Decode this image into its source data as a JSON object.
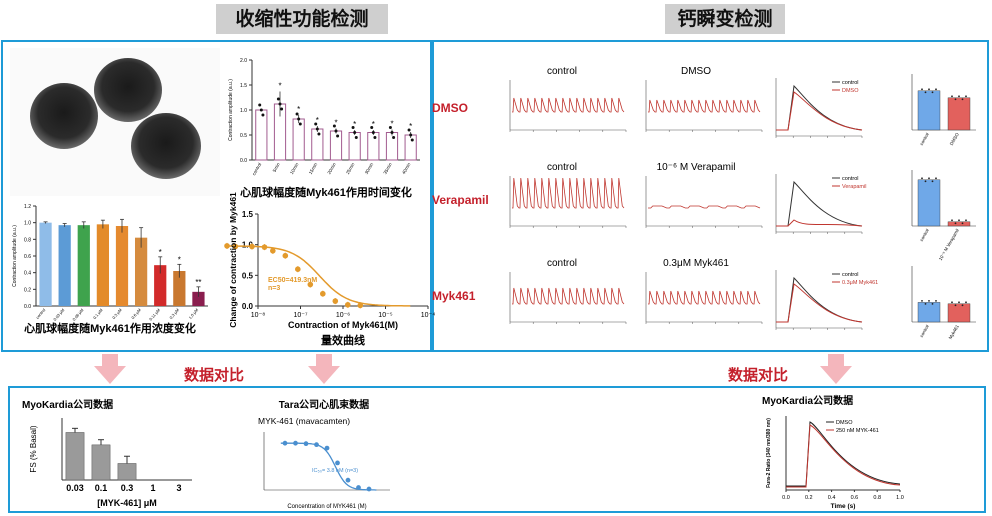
{
  "headers": {
    "left": "收缩性功能检测",
    "right": "钙瞬变检测"
  },
  "compare_labels": [
    "数据对比",
    "数据对比"
  ],
  "row_labels": [
    "DMSO",
    "Verapamil",
    "Myk461"
  ],
  "group_colors": {
    "dmso": "#e2615d",
    "drug": "#6fa8e8",
    "red_trace": "#c0362f",
    "dark_trace": "#333333",
    "accent": "#1e9bd7",
    "arrow": "#f4b6bc"
  },
  "trace_titles": [
    [
      "control",
      "DMSO"
    ],
    [
      "control",
      "10⁻⁶ M Verapamil"
    ],
    [
      "control",
      "0.3μM Myk461"
    ]
  ],
  "overlay_legends": [
    [
      "control",
      "DMSO"
    ],
    [
      "control",
      "Verapamil"
    ],
    [
      "control",
      "0.3μM Myk461"
    ]
  ],
  "chart_data": [
    {
      "id": "conc_bar",
      "type": "bar",
      "caption": "心肌球幅度随Myk461作用浓度变化",
      "ylabel": "Contraction amplitude (a.u.)",
      "categories": [
        "control",
        "0.03 μM",
        "0.06 μM",
        "0.1 μM",
        "0.3 μM",
        "0.6 μM",
        "0.11 μM",
        "0.3 μM",
        "1.0 μM"
      ],
      "values": [
        1.0,
        0.97,
        0.97,
        0.98,
        0.96,
        0.82,
        0.49,
        0.42,
        0.17
      ],
      "errors": [
        0.01,
        0.02,
        0.04,
        0.05,
        0.08,
        0.12,
        0.1,
        0.08,
        0.06
      ],
      "sig": [
        "",
        "",
        "",
        "",
        "",
        "",
        "*",
        "*",
        "**"
      ],
      "colors": [
        "#8fbce8",
        "#5c9bd6",
        "#3fa34d",
        "#e38b2a",
        "#e58a2f",
        "#d58b3e",
        "#d22a2a",
        "#c9782f",
        "#8a1e4e"
      ],
      "ylim": [
        0,
        1.2
      ],
      "yticks": [
        "0.0",
        "0.2",
        "0.4",
        "0.6",
        "0.8",
        "1.0",
        "1.2"
      ]
    },
    {
      "id": "time_bar",
      "type": "bar",
      "caption": "心肌球幅度随Myk461作用时间变化",
      "ylabel": "Contraction amplitude (a.u.)",
      "categories": [
        "control",
        "5min",
        "10min",
        "15min",
        "20min",
        "25min",
        "30min",
        "35min",
        "40min"
      ],
      "values": [
        1.0,
        1.12,
        0.82,
        0.62,
        0.58,
        0.55,
        0.55,
        0.55,
        0.5
      ],
      "errors": [
        0.01,
        0.25,
        0.08,
        0.06,
        0.05,
        0.05,
        0.05,
        0.06,
        0.06
      ],
      "sig": [
        "",
        "*",
        "*",
        "*",
        "*",
        "*",
        "*",
        "*",
        "*"
      ],
      "ylim": [
        0,
        2.0
      ],
      "yticks": [
        "0.0",
        "0.5",
        "1.0",
        "1.5",
        "2.0"
      ]
    },
    {
      "id": "dose_curve",
      "type": "scatter",
      "caption": "量效曲线",
      "xlabel": "Contraction of Myk461(M)",
      "ylabel": "Change of contraction by Myk461",
      "annotation": [
        "EC50=419.3nM",
        "n=3"
      ],
      "x_log10": [
        -8.6,
        -8.4,
        -8.0,
        -7.7,
        -7.5,
        -7.2,
        -6.9,
        -6.6,
        -6.3,
        -6.0,
        -5.7,
        -5.4
      ],
      "y": [
        0.98,
        0.97,
        0.97,
        0.96,
        0.9,
        0.82,
        0.6,
        0.35,
        0.2,
        0.08,
        0.02,
        0.01
      ],
      "ylim": [
        0,
        1.5
      ],
      "yticks": [
        "0.0",
        "0.5",
        "1.0",
        "1.5"
      ],
      "xticks": [
        "10⁻⁸",
        "10⁻⁷",
        "10⁻⁶",
        "10⁻⁵",
        "10⁻⁴"
      ]
    },
    {
      "id": "myokardia_bar",
      "type": "bar",
      "title": "MyoKardia公司数据",
      "xlabel": "[MYK-461] μM",
      "ylabel": "FS (% Basal)",
      "categories": [
        "0.03",
        "0.1",
        "0.3",
        "1",
        "3"
      ],
      "values": [
        92,
        68,
        32,
        0,
        0
      ],
      "errors": [
        8,
        10,
        14,
        0,
        0
      ]
    },
    {
      "id": "tara_curve",
      "type": "scatter",
      "title": "Tara公司心肌束数据",
      "subtitle": "MYK-461 (mavacamten)",
      "xlabel": "Concentration of MYK461 (M)",
      "annotation": "IC₅₀= 3.8 nM (n=3)",
      "x_log10": [
        -10,
        -9.5,
        -9,
        -8.5,
        -8,
        -7.5,
        -7,
        -6.5,
        -6
      ],
      "y": [
        0.95,
        0.95,
        0.94,
        0.92,
        0.85,
        0.55,
        0.2,
        0.05,
        0.02
      ]
    },
    {
      "id": "myokardia_trace",
      "type": "line",
      "title": "MyoKardia公司数据",
      "xlabel": "Time (s)",
      "ylabel": "Fura-2 Ratio (340 nm/380 nm)",
      "legend": [
        "DMSO",
        "250 nM MYK-461"
      ],
      "xticks": [
        "0.0",
        "0.2",
        "0.4",
        "0.6",
        "0.8",
        "1.0"
      ]
    },
    {
      "id": "transient_summary",
      "type": "bar",
      "rows": [
        {
          "categories": [
            "control",
            "DMSO"
          ],
          "values": [
            0.28,
            0.23
          ]
        },
        {
          "categories": [
            "control",
            "10⁻⁶ M Verapamil"
          ],
          "values": [
            0.33,
            0.03
          ]
        },
        {
          "categories": [
            "control",
            "Myk461"
          ],
          "values": [
            0.14,
            0.13
          ]
        }
      ]
    }
  ]
}
